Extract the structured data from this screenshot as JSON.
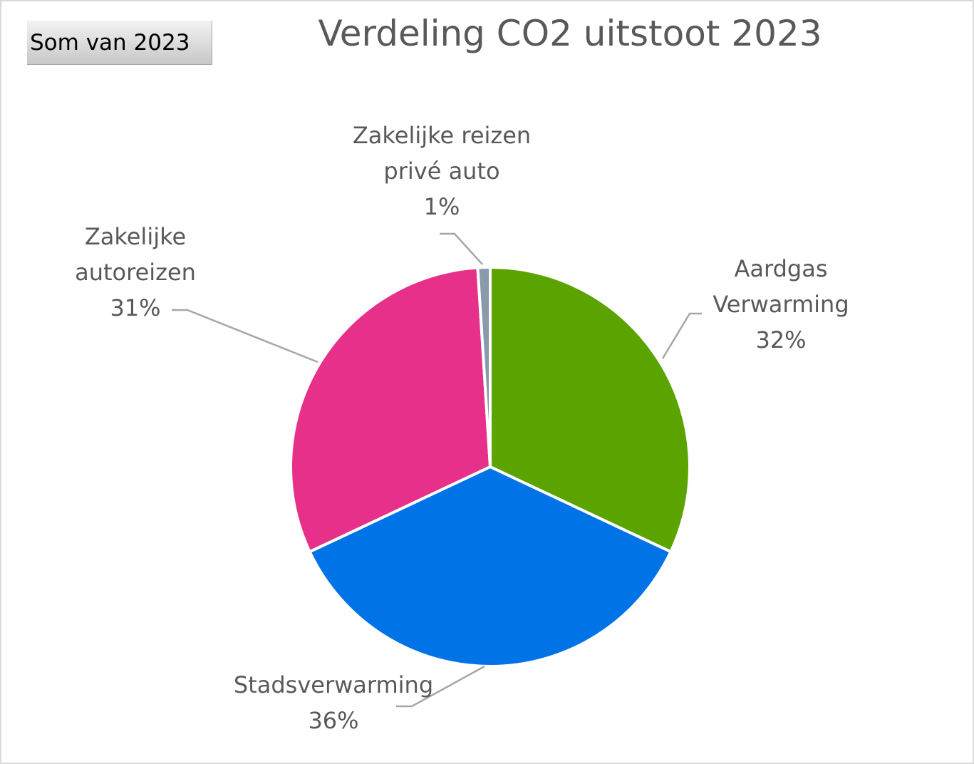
{
  "pivot_field_button": "Som van 2023",
  "chart_data": {
    "type": "pie",
    "title": "Verdeling CO2 uitstoot 2023",
    "slices": [
      {
        "category": "Aardgas Verwarming",
        "percent": 32,
        "label_lines": [
          "Aardgas",
          "Verwarming",
          "32%"
        ],
        "color": "#5aa300"
      },
      {
        "category": "Stadsverwarming",
        "percent": 36,
        "label_lines": [
          "Stadsverwarming",
          "36%"
        ],
        "color": "#0073e6"
      },
      {
        "category": "Zakelijke autoreizen",
        "percent": 31,
        "label_lines": [
          "Zakelijke",
          "autoreizen",
          "31%"
        ],
        "color": "#e6308a"
      },
      {
        "category": "Zakelijke reizen privé auto",
        "percent": 1,
        "label_lines": [
          "Zakelijke reizen",
          "privé auto",
          "1%"
        ],
        "color": "#8a9aaa"
      }
    ],
    "legend": "none",
    "data_labels": "category name and percentage with leader lines"
  }
}
